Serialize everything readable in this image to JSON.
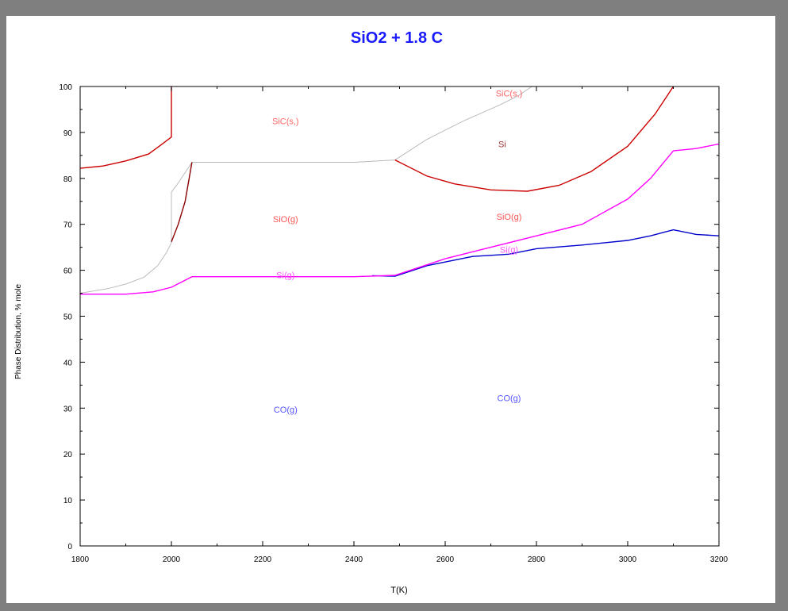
{
  "chart_data": {
    "type": "area",
    "title": "SiO2 +  1.8 C",
    "xlabel": "T(K)",
    "ylabel": "Phase Distribution, % mole",
    "xlim": [
      1800,
      3200
    ],
    "ylim": [
      0,
      100
    ],
    "x_ticks": [
      1800,
      2000,
      2200,
      2400,
      2600,
      2800,
      3000,
      3200
    ],
    "y_ticks": [
      0,
      10,
      20,
      30,
      40,
      50,
      60,
      70,
      80,
      90,
      100
    ],
    "grid": false,
    "legend": "none",
    "series": [
      {
        "color": "#0000cc",
        "points": [
          [
            2440,
            58.8
          ],
          [
            2490,
            58.7
          ],
          [
            2560,
            61
          ],
          [
            2660,
            63
          ],
          [
            2740,
            63.5
          ],
          [
            2800,
            64.7
          ],
          [
            2900,
            65.5
          ],
          [
            3000,
            66.5
          ],
          [
            3050,
            67.5
          ],
          [
            3100,
            68.8
          ],
          [
            3150,
            67.8
          ],
          [
            3200,
            67.5
          ]
        ]
      },
      {
        "color": "#ff00ff",
        "points": [
          [
            1800,
            54.8
          ],
          [
            1900,
            54.8
          ],
          [
            1960,
            55.3
          ],
          [
            2000,
            56.3
          ],
          [
            2045,
            58.6
          ],
          [
            2200,
            58.6
          ],
          [
            2400,
            58.6
          ],
          [
            2490,
            58.9
          ],
          [
            2600,
            62.5
          ],
          [
            2700,
            65
          ],
          [
            2800,
            67.5
          ],
          [
            2900,
            70
          ],
          [
            3000,
            75.5
          ],
          [
            3050,
            80
          ],
          [
            3100,
            86
          ],
          [
            3150,
            86.5
          ],
          [
            3200,
            87.5
          ]
        ]
      },
      {
        "color": "#bbbbbb",
        "points": [
          [
            1800,
            55
          ],
          [
            1860,
            56
          ],
          [
            1900,
            57
          ],
          [
            1940,
            58.5
          ],
          [
            1970,
            61
          ],
          [
            1990,
            64
          ],
          [
            2000,
            66
          ],
          [
            2000,
            77
          ],
          [
            2015,
            79
          ],
          [
            2045,
            83.5
          ],
          [
            2200,
            83.5
          ],
          [
            2400,
            83.5
          ],
          [
            2490,
            84
          ],
          [
            2560,
            88.5
          ],
          [
            2640,
            92.5
          ],
          [
            2720,
            96
          ],
          [
            2760,
            98
          ],
          [
            2790,
            100
          ]
        ]
      },
      {
        "color": "#cc0000",
        "points": [
          [
            1800,
            82.2
          ],
          [
            1850,
            82.7
          ],
          [
            1900,
            83.8
          ],
          [
            1950,
            85.3
          ],
          [
            1980,
            87.5
          ],
          [
            2000,
            89
          ],
          [
            2000,
            100
          ]
        ]
      },
      {
        "color": "#cc0000",
        "points": [
          [
            2490,
            84
          ],
          [
            2560,
            80.5
          ],
          [
            2620,
            78.8
          ],
          [
            2700,
            77.5
          ],
          [
            2780,
            77.2
          ],
          [
            2850,
            78.5
          ],
          [
            2920,
            81.5
          ],
          [
            3000,
            87
          ],
          [
            3060,
            94
          ],
          [
            3100,
            100
          ]
        ]
      },
      {
        "color": "#8b0000",
        "points": [
          [
            2000,
            66.2
          ],
          [
            2015,
            70
          ],
          [
            2030,
            75
          ],
          [
            2045,
            83.5
          ]
        ]
      }
    ],
    "annotations": [
      {
        "text": "SiC(s,)",
        "x": 2250,
        "y": 91.8,
        "color": "#ff6666"
      },
      {
        "text": "SiC(s,)",
        "x": 2740,
        "y": 97.8,
        "color": "#ff6666"
      },
      {
        "text": "Si",
        "x": 2725,
        "y": 86.8,
        "color": "#993333"
      },
      {
        "text": "SiO(g)",
        "x": 2250,
        "y": 70.5,
        "color": "#ff5555"
      },
      {
        "text": "SiO(g)",
        "x": 2740,
        "y": 71,
        "color": "#ff5555"
      },
      {
        "text": "Si(g)",
        "x": 2250,
        "y": 58.3,
        "color": "#ff55ff"
      },
      {
        "text": "Si(g)",
        "x": 2740,
        "y": 63.8,
        "color": "#ff55ff"
      },
      {
        "text": "CO(g)",
        "x": 2250,
        "y": 29,
        "color": "#5555ff"
      },
      {
        "text": "CO(g)",
        "x": 2740,
        "y": 31.5,
        "color": "#5555ff"
      }
    ]
  }
}
